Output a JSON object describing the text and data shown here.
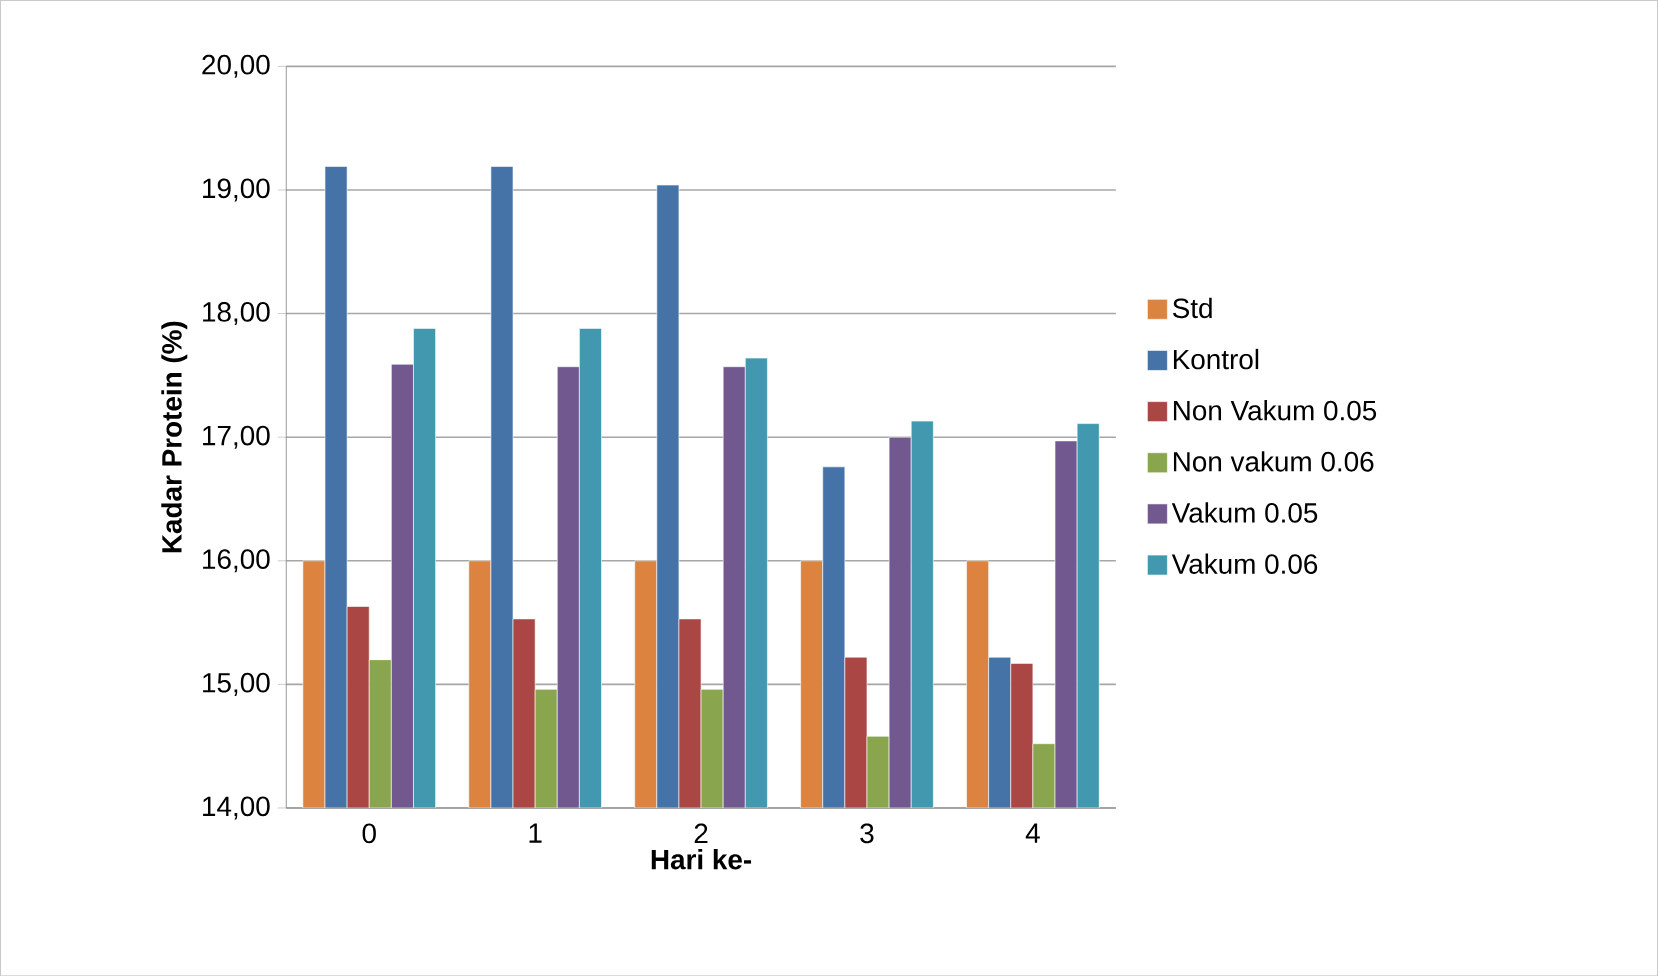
{
  "chart_data": {
    "type": "bar",
    "xlabel": "Hari ke-",
    "ylabel": "Kadar Protein (%)",
    "categories": [
      "0",
      "1",
      "2",
      "3",
      "4"
    ],
    "ylim": [
      14,
      20
    ],
    "yticks": [
      {
        "value": 14,
        "label": "14,00"
      },
      {
        "value": 15,
        "label": "15,00"
      },
      {
        "value": 16,
        "label": "16,00"
      },
      {
        "value": 17,
        "label": "17,00"
      },
      {
        "value": 18,
        "label": "18,00"
      },
      {
        "value": 19,
        "label": "19,00"
      },
      {
        "value": 20,
        "label": "20,00"
      }
    ],
    "grid": "y",
    "legend": "right",
    "series": [
      {
        "name": "Std",
        "color": "#dd8340",
        "values": [
          16.0,
          16.0,
          16.0,
          16.0,
          16.0
        ]
      },
      {
        "name": "Kontrol",
        "color": "#4572a7",
        "values": [
          19.19,
          19.19,
          19.04,
          16.76,
          15.22
        ]
      },
      {
        "name": "Non Vakum 0.05",
        "color": "#aa4643",
        "values": [
          15.63,
          15.53,
          15.53,
          15.22,
          15.17
        ]
      },
      {
        "name": "Non vakum 0.06",
        "color": "#89a54e",
        "values": [
          15.2,
          14.96,
          14.96,
          14.58,
          14.52
        ]
      },
      {
        "name": "Vakum 0.05",
        "color": "#71588f",
        "values": [
          17.59,
          17.57,
          17.57,
          17.0,
          16.97
        ]
      },
      {
        "name": "Vakum 0.06",
        "color": "#4198af",
        "values": [
          17.88,
          17.88,
          17.64,
          17.13,
          17.11
        ]
      }
    ]
  }
}
